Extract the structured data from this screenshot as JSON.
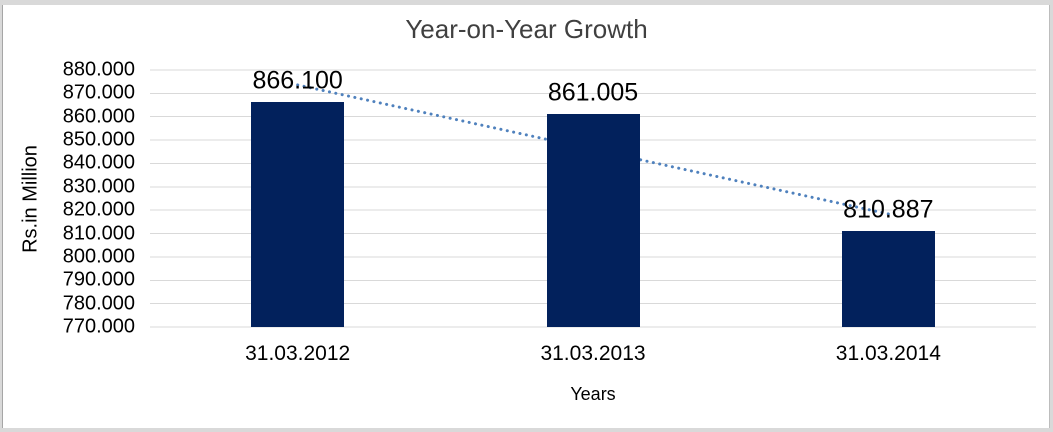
{
  "chart_data": {
    "type": "bar",
    "title": "Year-on-Year Growth",
    "categories": [
      "31.03.2012",
      "31.03.2013",
      "31.03.2014"
    ],
    "values": [
      866.1,
      861.005,
      810.887
    ],
    "data_labels": [
      "866.100",
      "861.005",
      "810.887"
    ],
    "xlabel": "Years",
    "ylabel": "Rs.in Million",
    "ylim": [
      770,
      880
    ],
    "ytick_step": 10,
    "ytick_labels": [
      "880.000",
      "870.000",
      "860.000",
      "850.000",
      "840.000",
      "830.000",
      "820.000",
      "810.000",
      "800.000",
      "790.000",
      "780.000",
      "770.000"
    ],
    "grid": true,
    "legend": "none",
    "trendline": {
      "type": "linear",
      "style": "dotted"
    },
    "colors": {
      "bar": "#02215C",
      "gridline": "#D9D9D9",
      "trendline": "#4F81BD",
      "title_text": "#404040",
      "axis_text": "#000000",
      "frame": "#D9D9D9"
    }
  }
}
